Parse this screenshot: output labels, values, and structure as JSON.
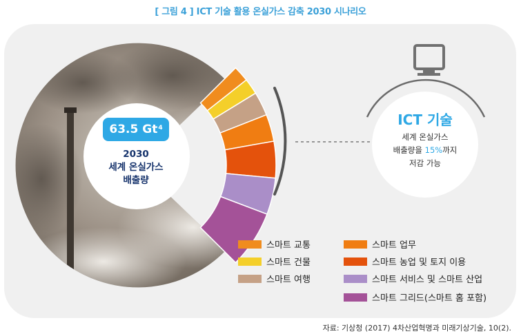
{
  "figure": {
    "title": "[ 그림 4 ] ICT 기술 활용 온실가스 감축 2030 시나리오"
  },
  "center": {
    "value": "63.5 Gt",
    "value_sup": "4",
    "line1": "2030",
    "line2": "세계 온실가스",
    "line3": "배출량"
  },
  "ict": {
    "icon": "monitor-icon",
    "title": "ICT 기술",
    "desc_line1": "세계 온실가스",
    "desc_line2_pre": "배출량을 ",
    "desc_line2_hl": "15%",
    "desc_line2_post": "까지",
    "desc_line3": "저감 가능"
  },
  "colors": {
    "accent": "#2ea8e5",
    "navy": "#16336c",
    "panel": "#f0f0f0"
  },
  "legend": [
    {
      "label": "스마트 교통",
      "color": "#f08c1e"
    },
    {
      "label": "스마트 건물",
      "color": "#f4cf2a"
    },
    {
      "label": "스마트 여행",
      "color": "#c5a186"
    },
    {
      "label": "스마트 업무",
      "color": "#f07d12"
    },
    {
      "label": "스마트 농업 및 토지 이용",
      "color": "#e4520c"
    },
    {
      "label": "스마트 서비스 및 스마트 산업",
      "color": "#aa8ec8"
    },
    {
      "label": "스마트 그리드(스마트 홈 포함)",
      "color": "#a45298"
    }
  ],
  "source": "자료: 기상청 (2017) 4차산업혁명과 미래기상기술, 10(2)."
}
